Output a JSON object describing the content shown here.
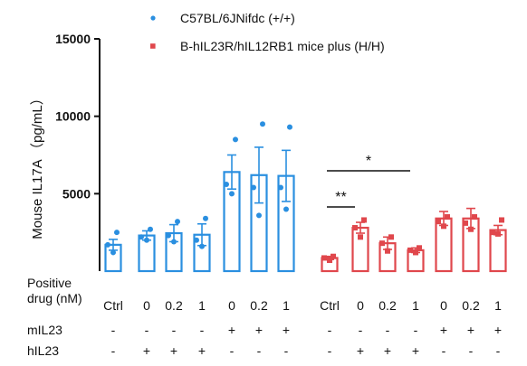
{
  "chart_data": {
    "type": "bar",
    "ylabel": "Mouse IL17A （pg/mL）",
    "ylim": [
      0,
      15000
    ],
    "yticks": [
      5000,
      10000,
      15000
    ],
    "legend": [
      {
        "name": "C57BL/6JNifdc (+/+)",
        "color": "#2a8fe0",
        "marker": "circle"
      },
      {
        "name": "B-hIL23R/hIL12RB1 mice plus (H/H)",
        "color": "#e0474c",
        "marker": "square"
      }
    ],
    "row_labels": {
      "drug": "Positive\ndrug (nM)",
      "mIL23": "mIL23",
      "hIL23": "hIL23"
    },
    "groups": [
      {
        "name": "C57BL/6JNifdc (+/+)",
        "color": "#2a8fe0",
        "bars": [
          {
            "drug": "Ctrl",
            "mIL23": "-",
            "hIL23": "-",
            "mean": 1700,
            "sem": 350,
            "points": [
              1200,
              1700,
              2500
            ]
          },
          {
            "drug": "0",
            "mIL23": "-",
            "hIL23": "+",
            "mean": 2300,
            "sem": 300,
            "points": [
              2000,
              2200,
              2700
            ]
          },
          {
            "drug": "0.2",
            "mIL23": "-",
            "hIL23": "+",
            "mean": 2450,
            "sem": 550,
            "points": [
              1900,
              2300,
              3200
            ]
          },
          {
            "drug": "1",
            "mIL23": "-",
            "hIL23": "+",
            "mean": 2350,
            "sem": 700,
            "points": [
              1600,
              2000,
              3400
            ]
          },
          {
            "drug": "0",
            "mIL23": "+",
            "hIL23": "-",
            "mean": 6400,
            "sem": 1100,
            "points": [
              5000,
              5600,
              8500
            ]
          },
          {
            "drug": "0.2",
            "mIL23": "+",
            "hIL23": "-",
            "mean": 6200,
            "sem": 1800,
            "points": [
              3600,
              5400,
              9500
            ]
          },
          {
            "drug": "1",
            "mIL23": "+",
            "hIL23": "-",
            "mean": 6150,
            "sem": 1650,
            "points": [
              4000,
              5400,
              9300
            ]
          }
        ]
      },
      {
        "name": "B-hIL23R/hIL12RB1 mice plus (H/H)",
        "color": "#e0474c",
        "bars": [
          {
            "drug": "Ctrl",
            "mIL23": "-",
            "hIL23": "-",
            "mean": 850,
            "sem": 100,
            "points": [
              700,
              850,
              950
            ]
          },
          {
            "drug": "0",
            "mIL23": "-",
            "hIL23": "+",
            "mean": 2800,
            "sem": 350,
            "points": [
              2200,
              2800,
              3300
            ]
          },
          {
            "drug": "0.2",
            "mIL23": "-",
            "hIL23": "+",
            "mean": 1800,
            "sem": 400,
            "points": [
              1300,
              1800,
              2200
            ]
          },
          {
            "drug": "1",
            "mIL23": "-",
            "hIL23": "+",
            "mean": 1350,
            "sem": 150,
            "points": [
              1200,
              1350,
              1500
            ]
          },
          {
            "drug": "0",
            "mIL23": "+",
            "hIL23": "-",
            "mean": 3400,
            "sem": 450,
            "points": [
              2900,
              3200,
              3500
            ]
          },
          {
            "drug": "0.2",
            "mIL23": "+",
            "hIL23": "-",
            "mean": 3400,
            "sem": 650,
            "points": [
              2700,
              3100,
              3500
            ]
          },
          {
            "drug": "1",
            "mIL23": "+",
            "hIL23": "-",
            "mean": 2650,
            "sem": 300,
            "points": [
              2400,
              2500,
              3300
            ]
          }
        ]
      }
    ],
    "significance": [
      {
        "group": 1,
        "from": 0,
        "to": 1,
        "label": "**"
      },
      {
        "group": 1,
        "from": 0,
        "to": 3,
        "label": "*"
      }
    ]
  }
}
